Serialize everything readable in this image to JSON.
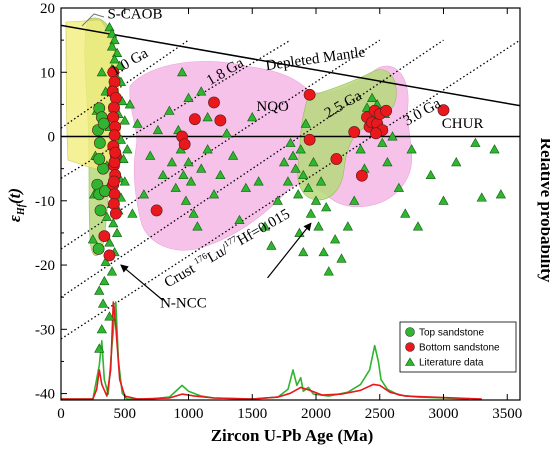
{
  "chart_data": {
    "type": "scatter",
    "title": "",
    "xlabel": "Zircon U-Pb Age (Ma)",
    "ylabel": "ε",
    "ylabel_sub": "Hf",
    "ylabel_tail": "(t)",
    "right_label": "Relative probability",
    "xlim": [
      0,
      3600
    ],
    "ylim": [
      -41,
      20
    ],
    "x_ticks": [
      "0",
      "500",
      "1000",
      "1500",
      "2000",
      "2500",
      "3000",
      "3500"
    ],
    "x_tick_values": [
      0,
      500,
      1000,
      1500,
      2000,
      2500,
      3000,
      3500
    ],
    "y_ticks": [
      "20",
      "10",
      "0",
      "-10",
      "-20",
      "-30",
      "-40"
    ],
    "y_tick_values": [
      20,
      10,
      0,
      -10,
      -20,
      -30,
      -40
    ],
    "reference_lines": [
      {
        "name": "Depleted Mantle",
        "points": [
          [
            0,
            17.3
          ],
          [
            3600,
            4.8
          ]
        ],
        "label_at": [
          2000,
          11.4
        ]
      },
      {
        "name": "CHUR",
        "points": [
          [
            0,
            0
          ],
          [
            3600,
            0
          ]
        ],
        "label_at": [
          3150,
          1.3
        ]
      }
    ],
    "crust_lines": {
      "lines": [
        {
          "name": "1.0 Ga",
          "points": [
            [
              0,
              1.3
            ],
            [
              1000,
              15.0
            ]
          ],
          "label_at": [
            555,
            11.0
          ]
        },
        {
          "name": "1.8 Ga",
          "points": [
            [
              0,
              -6.5
            ],
            [
              1800,
              15.0
            ]
          ],
          "label_at": [
            1305,
            9.5
          ]
        },
        {
          "name": "2.5 Ga",
          "points": [
            [
              0,
              -17.5
            ],
            [
              2500,
              15.0
            ]
          ],
          "label_at": [
            2230,
            4.4
          ]
        },
        {
          "name": "3.0 Ga",
          "points": [
            [
              0,
              -25.0
            ],
            [
              3000,
              15.0
            ]
          ],
          "label_at": [
            2850,
            3.2
          ]
        },
        {
          "name": "",
          "points": [
            [
              0,
              -31.5
            ],
            [
              3600,
              15.0
            ]
          ]
        }
      ],
      "label": "Crust ",
      "sup1": "176",
      "mid": "Lu/",
      "sup2": "177",
      "tail": "Hf=0.015"
    },
    "fields": [
      {
        "name": "S-CAOB",
        "color": "#f2ee7c",
        "label_at": [
          580,
          18.4
        ]
      },
      {
        "name": "NQO",
        "color": "#f4b7e6",
        "label_at": [
          1660,
          4.0
        ]
      },
      {
        "name": "N-NCC",
        "color": "#b7d97c",
        "label_at": [
          960,
          -26.6
        ]
      }
    ],
    "legend": {
      "position": "bottom-right",
      "entries": [
        "Top sandstone",
        "Bottom sandstone",
        "Literature data"
      ]
    },
    "series": [
      {
        "name": "Top sandstone",
        "marker": "circle",
        "color": "#2fb52f",
        "points": [
          [
            300,
            4.4
          ],
          [
            290,
            1.0
          ],
          [
            305,
            -1.0
          ],
          [
            285,
            -7.5
          ],
          [
            300,
            -9.0
          ],
          [
            310,
            -11.5
          ],
          [
            295,
            -17.5
          ],
          [
            320,
            3.0
          ],
          [
            335,
            2.0
          ],
          [
            330,
            -5.0
          ],
          [
            345,
            -8.5
          ],
          [
            300,
            -3.5
          ]
        ]
      },
      {
        "name": "Bottom sandstone",
        "marker": "circle",
        "color": "#e8181c",
        "points": [
          [
            410,
            10.0
          ],
          [
            420,
            8.5
          ],
          [
            405,
            7.0
          ],
          [
            430,
            6.0
          ],
          [
            415,
            4.5
          ],
          [
            410,
            3.0
          ],
          [
            425,
            1.5
          ],
          [
            420,
            0.2
          ],
          [
            410,
            -1.5
          ],
          [
            430,
            -3.0
          ],
          [
            415,
            -4.5
          ],
          [
            425,
            -6.0
          ],
          [
            410,
            -7.5
          ],
          [
            420,
            -9.0
          ],
          [
            415,
            -10.5
          ],
          [
            430,
            -12.0
          ],
          [
            420,
            -4.0
          ],
          [
            425,
            -2.5
          ],
          [
            415,
            -7.0
          ],
          [
            340,
            -15.5
          ],
          [
            380,
            -18.5
          ],
          [
            750,
            -11.5
          ],
          [
            950,
            0.0
          ],
          [
            970,
            -1.2
          ],
          [
            1050,
            2.7
          ],
          [
            1200,
            5.3
          ],
          [
            1250,
            2.5
          ],
          [
            1950,
            6.5
          ],
          [
            1950,
            -0.5
          ],
          [
            2160,
            -3.5
          ],
          [
            2300,
            0.7
          ],
          [
            2360,
            -6.1
          ],
          [
            2400,
            3.0
          ],
          [
            2420,
            1.5
          ],
          [
            2440,
            2.2
          ],
          [
            2460,
            4.0
          ],
          [
            2480,
            2.0
          ],
          [
            2500,
            3.5
          ],
          [
            2520,
            1.0
          ],
          [
            2550,
            4.0
          ],
          [
            2470,
            0.5
          ],
          [
            3000,
            4.1
          ]
        ]
      },
      {
        "name": "Literature data",
        "marker": "triangle",
        "color": "#2fb52f",
        "points": [
          [
            380,
            17.0
          ],
          [
            400,
            16.0
          ],
          [
            420,
            15.0
          ],
          [
            400,
            14.0
          ],
          [
            440,
            13.0
          ],
          [
            420,
            12.0
          ],
          [
            460,
            11.0
          ],
          [
            400,
            10.5
          ],
          [
            430,
            9.5
          ],
          [
            470,
            8.5
          ],
          [
            390,
            7.5
          ],
          [
            440,
            6.5
          ],
          [
            480,
            5.5
          ],
          [
            410,
            4.5
          ],
          [
            450,
            3.5
          ],
          [
            500,
            2.5
          ],
          [
            380,
            1.5
          ],
          [
            430,
            0.5
          ],
          [
            470,
            -0.5
          ],
          [
            400,
            -1.5
          ],
          [
            440,
            -2.5
          ],
          [
            490,
            -3.5
          ],
          [
            360,
            -4.5
          ],
          [
            420,
            -5.5
          ],
          [
            460,
            -6.5
          ],
          [
            380,
            -7.5
          ],
          [
            430,
            -8.5
          ],
          [
            470,
            -9.5
          ],
          [
            400,
            -10.5
          ],
          [
            450,
            -11.5
          ],
          [
            360,
            -12.5
          ],
          [
            410,
            -13.5
          ],
          [
            440,
            -15.0
          ],
          [
            380,
            -16.5
          ],
          [
            420,
            -18.0
          ],
          [
            350,
            -19.5
          ],
          [
            400,
            -21.0
          ],
          [
            340,
            -22.5
          ],
          [
            300,
            -24.0
          ],
          [
            330,
            -26.0
          ],
          [
            380,
            -28.0
          ],
          [
            320,
            -30.0
          ],
          [
            300,
            -33.0
          ],
          [
            250,
            -16.0
          ],
          [
            260,
            -9.0
          ],
          [
            270,
            -3.0
          ],
          [
            280,
            4.0
          ],
          [
            350,
            7.0
          ],
          [
            320,
            10.0
          ],
          [
            500,
            -7.0
          ],
          [
            520,
            -2.0
          ],
          [
            540,
            5.0
          ],
          [
            560,
            -12.0
          ],
          [
            600,
            2.0
          ],
          [
            650,
            -9.0
          ],
          [
            700,
            -3.0
          ],
          [
            760,
            1.0
          ],
          [
            800,
            -6.0
          ],
          [
            850,
            4.0
          ],
          [
            870,
            -4.0
          ],
          [
            900,
            -8.0
          ],
          [
            920,
            1.0
          ],
          [
            940,
            -2.0
          ],
          [
            960,
            -6.0
          ],
          [
            980,
            -10.0
          ],
          [
            1000,
            -4.0
          ],
          [
            1020,
            -7.0
          ],
          [
            1040,
            -12.0
          ],
          [
            1070,
            -14.0
          ],
          [
            1100,
            -5.0
          ],
          [
            1150,
            -2.0
          ],
          [
            1200,
            -9.0
          ],
          [
            1250,
            -6.0
          ],
          [
            1300,
            0.5
          ],
          [
            1350,
            -3.0
          ],
          [
            1400,
            -13.0
          ],
          [
            1450,
            -8.0
          ],
          [
            1500,
            3.0
          ],
          [
            1550,
            -7.0
          ],
          [
            1600,
            -14.0
          ],
          [
            1650,
            -17.0
          ],
          [
            1700,
            -10.0
          ],
          [
            1750,
            -4.0
          ],
          [
            1780,
            -7.0
          ],
          [
            1800,
            -1.0
          ],
          [
            1820,
            -3.0
          ],
          [
            1840,
            -5.0
          ],
          [
            1860,
            -9.0
          ],
          [
            1880,
            -2.0
          ],
          [
            1900,
            -6.0
          ],
          [
            1920,
            2.0
          ],
          [
            1940,
            -8.0
          ],
          [
            1960,
            -12.0
          ],
          [
            1980,
            -4.0
          ],
          [
            2000,
            -10.0
          ],
          [
            2020,
            -14.0
          ],
          [
            2040,
            -7.0
          ],
          [
            2060,
            -18.0
          ],
          [
            2080,
            -11.0
          ],
          [
            2100,
            -21.0
          ],
          [
            2150,
            -16.0
          ],
          [
            2200,
            -19.0
          ],
          [
            2250,
            -14.0
          ],
          [
            2300,
            -10.0
          ],
          [
            2350,
            -2.0
          ],
          [
            2380,
            -5.0
          ],
          [
            2400,
            4.5
          ],
          [
            2420,
            3.0
          ],
          [
            2440,
            6.0
          ],
          [
            2460,
            2.0
          ],
          [
            2480,
            5.0
          ],
          [
            2500,
            1.0
          ],
          [
            2520,
            -1.0
          ],
          [
            2540,
            3.5
          ],
          [
            2560,
            -4.0
          ],
          [
            2600,
            0.0
          ],
          [
            2650,
            -8.0
          ],
          [
            2700,
            -12.0
          ],
          [
            2750,
            -2.0
          ],
          [
            2800,
            -14.0
          ],
          [
            2900,
            -6.0
          ],
          [
            3000,
            -10.0
          ],
          [
            3100,
            -4.0
          ],
          [
            3250,
            -1.0
          ],
          [
            3400,
            -2.0
          ],
          [
            3450,
            -9.0
          ],
          [
            3300,
            -9.5
          ],
          [
            1150,
            3.0
          ],
          [
            1000,
            6.0
          ],
          [
            950,
            10.0
          ],
          [
            1100,
            7.0
          ],
          [
            1870,
            -15.0
          ],
          [
            1900,
            -18.0
          ]
        ]
      }
    ],
    "probability_curves": [
      {
        "name": "Top sandstone",
        "color": "#2fb52f",
        "points": [
          [
            0,
            0
          ],
          [
            250,
            0
          ],
          [
            300,
            35
          ],
          [
            320,
            60
          ],
          [
            340,
            20
          ],
          [
            370,
            5
          ],
          [
            400,
            55
          ],
          [
            430,
            100
          ],
          [
            450,
            40
          ],
          [
            480,
            6
          ],
          [
            520,
            0
          ],
          [
            700,
            0
          ],
          [
            850,
            2
          ],
          [
            950,
            14
          ],
          [
            1000,
            8
          ],
          [
            1100,
            3
          ],
          [
            1200,
            1
          ],
          [
            1500,
            0
          ],
          [
            1700,
            2
          ],
          [
            1780,
            10
          ],
          [
            1820,
            30
          ],
          [
            1850,
            14
          ],
          [
            1880,
            22
          ],
          [
            1900,
            8
          ],
          [
            1940,
            12
          ],
          [
            1980,
            5
          ],
          [
            2100,
            3
          ],
          [
            2250,
            7
          ],
          [
            2350,
            15
          ],
          [
            2420,
            30
          ],
          [
            2460,
            55
          ],
          [
            2490,
            38
          ],
          [
            2510,
            20
          ],
          [
            2560,
            10
          ],
          [
            2650,
            4
          ],
          [
            2800,
            2
          ],
          [
            3000,
            1
          ],
          [
            3200,
            0
          ]
        ]
      },
      {
        "name": "Bottom sandstone",
        "color": "#e8181c",
        "points": [
          [
            0,
            0
          ],
          [
            250,
            0
          ],
          [
            280,
            10
          ],
          [
            300,
            30
          ],
          [
            320,
            15
          ],
          [
            360,
            3
          ],
          [
            390,
            30
          ],
          [
            410,
            100
          ],
          [
            430,
            75
          ],
          [
            460,
            20
          ],
          [
            500,
            3
          ],
          [
            600,
            0
          ],
          [
            850,
            1
          ],
          [
            950,
            5
          ],
          [
            1050,
            3
          ],
          [
            1200,
            1
          ],
          [
            1500,
            0
          ],
          [
            1700,
            2
          ],
          [
            1800,
            6
          ],
          [
            1880,
            12
          ],
          [
            1950,
            9
          ],
          [
            2050,
            4
          ],
          [
            2200,
            5
          ],
          [
            2350,
            9
          ],
          [
            2450,
            15
          ],
          [
            2500,
            14
          ],
          [
            2580,
            7
          ],
          [
            2700,
            3
          ],
          [
            2900,
            2
          ],
          [
            3100,
            1
          ],
          [
            3300,
            0
          ]
        ]
      }
    ]
  }
}
